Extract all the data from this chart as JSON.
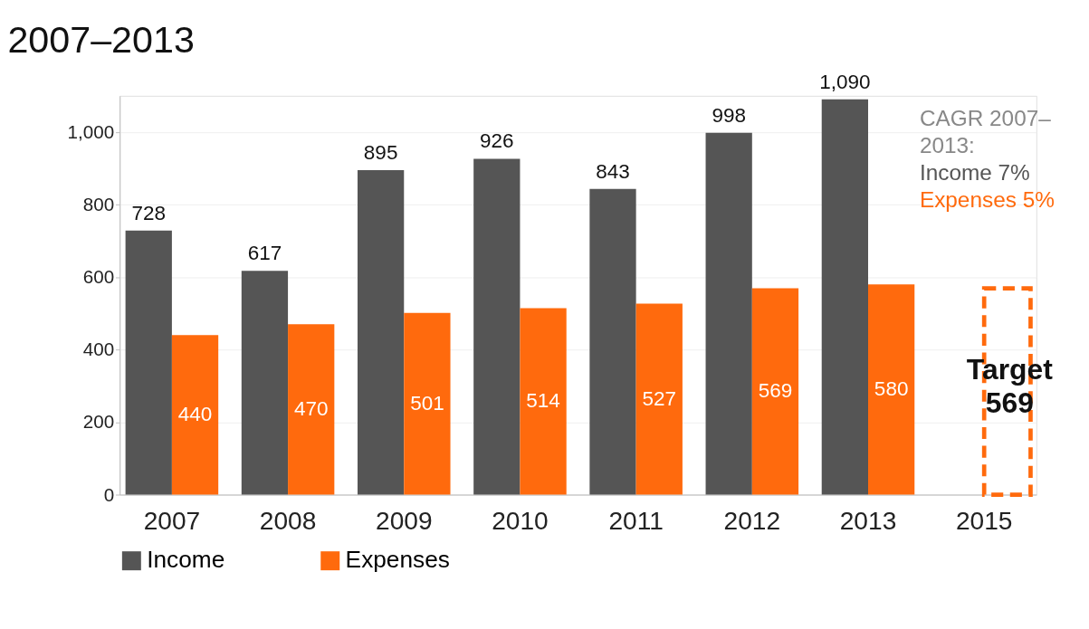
{
  "chart_data": {
    "type": "bar",
    "title": "2007–2013",
    "categories": [
      "2007",
      "2008",
      "2009",
      "2010",
      "2011",
      "2012",
      "2013",
      "2015"
    ],
    "series": [
      {
        "name": "Income",
        "color": "#555555",
        "values": [
          728,
          617,
          895,
          926,
          843,
          998,
          1090,
          null
        ],
        "value_labels": [
          "728",
          "617",
          "895",
          "926",
          "843",
          "998",
          "1,090",
          null
        ]
      },
      {
        "name": "Expenses",
        "color": "#ff6a0d",
        "values": [
          440,
          470,
          501,
          514,
          527,
          569,
          580,
          null
        ],
        "value_labels": [
          "440",
          "470",
          "501",
          "514",
          "527",
          "569",
          "580",
          null
        ]
      },
      {
        "color": "#ff6a0d",
        "line_style": "dashed",
        "values": [
          null,
          null,
          null,
          null,
          null,
          null,
          null,
          569
        ]
      }
    ],
    "ylim": [
      0,
      1100
    ],
    "yticks": [
      0,
      200,
      400,
      600,
      800,
      {
        "value": 1000,
        "label": "1,000"
      }
    ],
    "grid": "y",
    "legend": "bottom",
    "annotations": [
      "CAGR 2007–2013:",
      "Income 7%",
      "Expenses 5%",
      {
        "text": "Target 569",
        "x": "2015",
        "y": 569
      }
    ]
  }
}
